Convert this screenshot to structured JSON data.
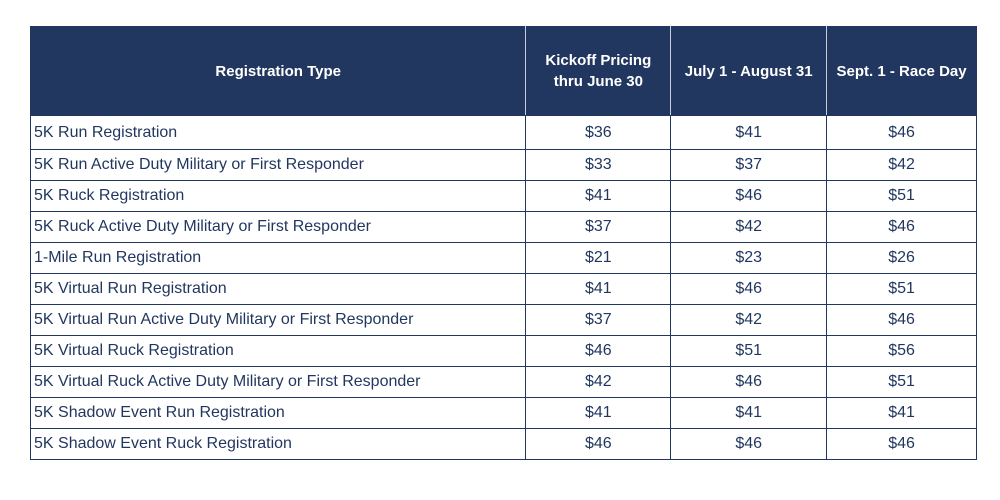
{
  "headers": [
    "Registration Type",
    "Kickoff Pricing thru June 30",
    "July 1 - August 31",
    "Sept. 1 - Race Day"
  ],
  "rows": [
    {
      "type": "5K Run Registration",
      "prices": [
        "$36",
        "$41",
        "$46"
      ]
    },
    {
      "type": "5K Run Active Duty Military or First Responder",
      "prices": [
        "$33",
        "$37",
        "$42"
      ]
    },
    {
      "type": "5K Ruck Registration",
      "prices": [
        "$41",
        "$46",
        "$51"
      ]
    },
    {
      "type": "5K Ruck Active Duty Military or First Responder",
      "prices": [
        "$37",
        "$42",
        "$46"
      ]
    },
    {
      "type": "1-Mile Run Registration",
      "prices": [
        "$21",
        "$23",
        "$26"
      ]
    },
    {
      "type": "5K Virtual Run Registration",
      "prices": [
        "$41",
        "$46",
        "$51"
      ]
    },
    {
      "type": "5K Virtual Run Active Duty Military or First Responder",
      "prices": [
        "$37",
        "$42",
        "$46"
      ]
    },
    {
      "type": "5K Virtual Ruck Registration",
      "prices": [
        "$46",
        "$51",
        "$56"
      ]
    },
    {
      "type": "5K Virtual Ruck Active Duty Military or First Responder",
      "prices": [
        "$42",
        "$46",
        "$51"
      ]
    },
    {
      "type": "5K Shadow Event Run Registration",
      "prices": [
        "$41",
        "$41",
        "$41"
      ]
    },
    {
      "type": "5K Shadow Event Ruck Registration",
      "prices": [
        "$46",
        "$46",
        "$46"
      ]
    }
  ],
  "colors": {
    "header_bg": "#22375f",
    "text": "#22375f"
  }
}
